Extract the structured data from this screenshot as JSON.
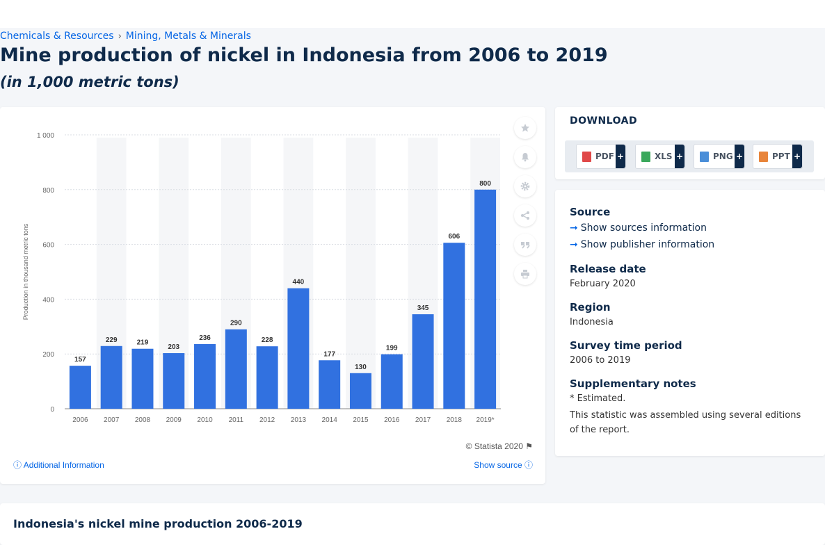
{
  "breadcrumb": {
    "item1": "Chemicals & Resources",
    "sep": "›",
    "item2": "Mining, Metals & Minerals"
  },
  "page": {
    "title": "Mine production of nickel in Indonesia from 2006 to 2019",
    "subtitle": "(in 1,000 metric tons)"
  },
  "chart_data": {
    "type": "bar",
    "categories": [
      "2006",
      "2007",
      "2008",
      "2009",
      "2010",
      "2011",
      "2012",
      "2013",
      "2014",
      "2015",
      "2016",
      "2017",
      "2018",
      "2019*"
    ],
    "values": [
      157,
      229,
      219,
      203,
      236,
      290,
      228,
      440,
      177,
      130,
      199,
      345,
      606,
      800
    ],
    "ylabel": "Production in thousand metric tons",
    "ylim": [
      0,
      1000
    ],
    "yticks": [
      0,
      200,
      400,
      600,
      800,
      1000
    ],
    "ytick_labels": [
      "0",
      "200",
      "400",
      "600",
      "800",
      "1 000"
    ],
    "bar_color": "#3171e0",
    "grid": true
  },
  "chart_footer": {
    "copyright": "© Statista 2020",
    "additional_info": "Additional Information",
    "show_source": "Show source"
  },
  "toolbar": {
    "icons": [
      "star-icon",
      "bell-icon",
      "gear-icon",
      "share-icon",
      "quote-icon",
      "print-icon"
    ]
  },
  "download": {
    "title": "DOWNLOAD",
    "buttons": [
      {
        "label": "PDF",
        "color": "#e04848"
      },
      {
        "label": "XLS",
        "color": "#3aa85c"
      },
      {
        "label": "PNG",
        "color": "#4a8ed8"
      },
      {
        "label": "PPT",
        "color": "#e8843a"
      }
    ],
    "plus": "+"
  },
  "info": {
    "source_label": "Source",
    "sources_link": "Show sources information",
    "publisher_link": "Show publisher information",
    "release_label": "Release date",
    "release_value": "February 2020",
    "region_label": "Region",
    "region_value": "Indonesia",
    "survey_label": "Survey time period",
    "survey_value": "2006 to 2019",
    "notes_label": "Supplementary notes",
    "notes_line1": "* Estimated.",
    "notes_line2": "This statistic was assembled using several editions of the report."
  },
  "bottom": {
    "title": "Indonesia's nickel mine production 2006-2019"
  }
}
